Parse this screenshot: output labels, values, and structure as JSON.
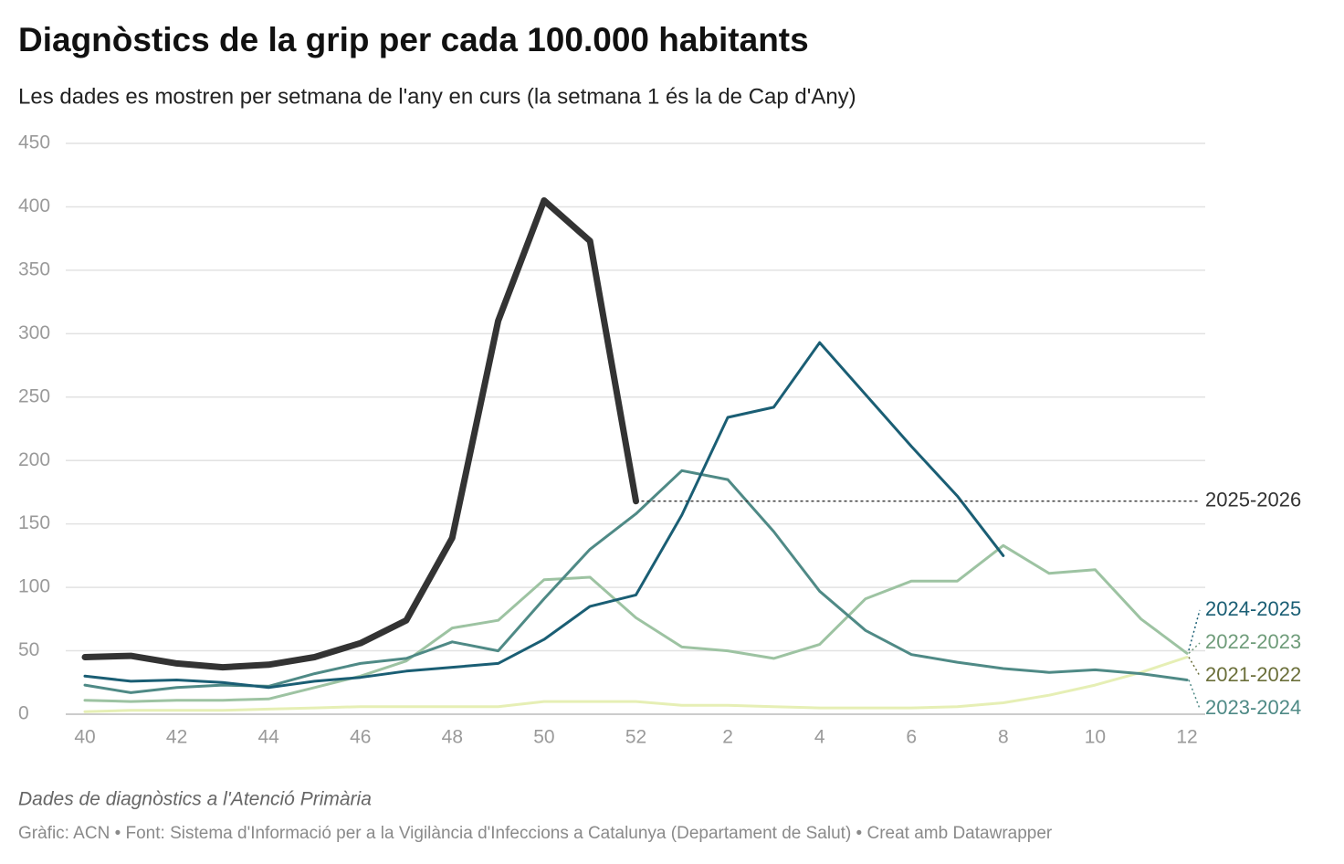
{
  "chart_data": {
    "type": "line",
    "title": "Diagnòstics de la grip per cada 100.000 habitants",
    "subtitle": "Les dades es mostren per setmana de l'any en curs (la setmana 1 és la de Cap d'Any)",
    "note": "Dades de diagnòstics a l'Atenció Primària",
    "credit": "Gràfic: ACN • Font: Sistema d'Informació per a la Vigilància d'Infeccions a Catalunya (Departament de Salut) • Creat amb Datawrapper",
    "categories": [
      40,
      null,
      42,
      null,
      44,
      null,
      46,
      null,
      48,
      null,
      50,
      null,
      52,
      null,
      2,
      null,
      4,
      null,
      6,
      null,
      8,
      null,
      10,
      null,
      12
    ],
    "ylim": [
      0,
      450
    ],
    "yticks": [
      0,
      50,
      100,
      150,
      200,
      250,
      300,
      350,
      400,
      450
    ],
    "grid": true,
    "series": [
      {
        "name": "2025-2026",
        "color": "#333333",
        "label_color": "#333333",
        "values": [
          45,
          46,
          40,
          37,
          39,
          45,
          56,
          74,
          139,
          310,
          405,
          373,
          168,
          null,
          null,
          null,
          null,
          null,
          null,
          null,
          null,
          null,
          null,
          null,
          null
        ]
      },
      {
        "name": "2024-2025",
        "color": "#1a5e74",
        "label_color": "#1a5e74",
        "values": [
          30,
          26,
          27,
          25,
          21,
          26,
          29,
          34,
          37,
          40,
          59,
          85,
          94,
          157,
          234,
          242,
          293,
          252,
          211,
          172,
          125,
          null,
          null,
          null,
          null
        ]
      },
      {
        "name": "2023-2024",
        "color": "#4f8a86",
        "label_color": "#4f8a86",
        "values": [
          23,
          17,
          21,
          23,
          22,
          32,
          40,
          44,
          57,
          50,
          91,
          130,
          158,
          192,
          185,
          144,
          97,
          66,
          47,
          41,
          36,
          33,
          35,
          32,
          27
        ]
      },
      {
        "name": "2022-2023",
        "color": "#9dc3a2",
        "label_color": "#6f9c7a",
        "values": [
          11,
          10,
          11,
          11,
          12,
          21,
          30,
          42,
          68,
          74,
          106,
          108,
          76,
          53,
          50,
          44,
          55,
          91,
          105,
          105,
          133,
          111,
          114,
          75,
          48
        ]
      },
      {
        "name": "2021-2022",
        "color": "#e6efb5",
        "label_color": "#6b6f3a",
        "values": [
          2,
          3,
          3,
          3,
          4,
          5,
          6,
          6,
          6,
          6,
          10,
          10,
          10,
          7,
          7,
          6,
          5,
          5,
          5,
          6,
          9,
          15,
          23,
          33,
          45
        ]
      }
    ]
  }
}
